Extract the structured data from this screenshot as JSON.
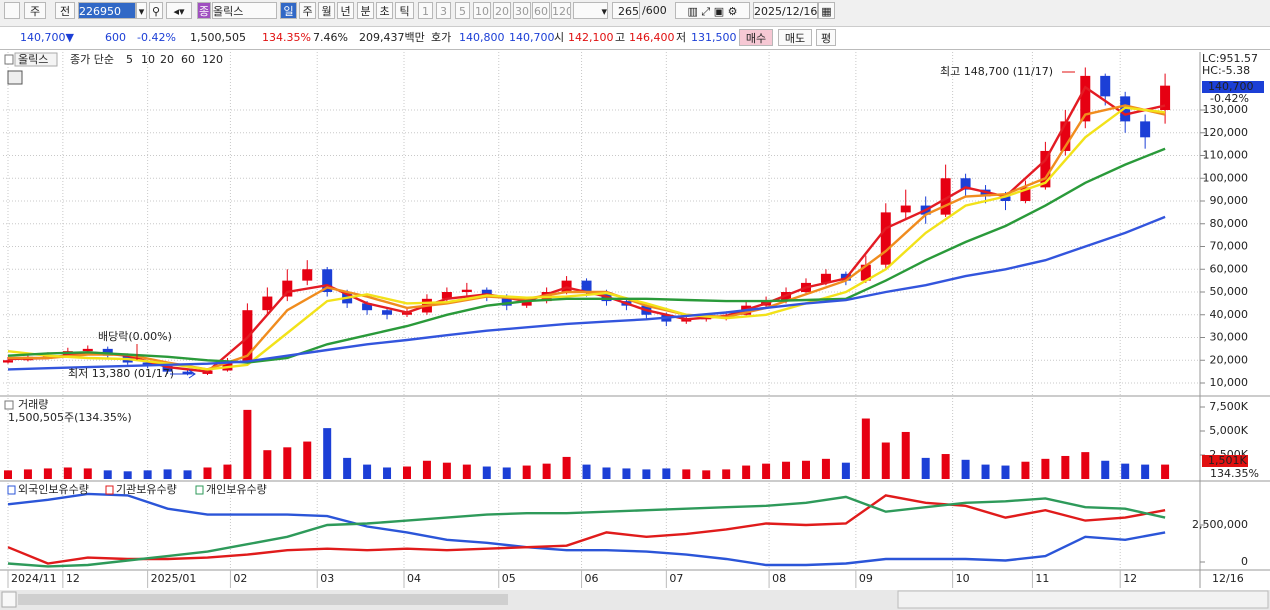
{
  "toolbar": {
    "row1": [
      "주",
      "전",
      "226950",
      "종",
      "올릭스",
      "일",
      "주",
      "월",
      "년",
      "분",
      "초",
      "틱",
      "1",
      "3",
      "5",
      "10",
      "20",
      "30",
      "60",
      "120",
      "265",
      "/600",
      "2025/12/16"
    ],
    "row2": [
      "140,700▼",
      "600",
      "-0.42%",
      "1,500,505",
      "134.35%",
      "7.46%",
      "209,437백만",
      "호가",
      "140,800",
      "140,700",
      "시",
      "142,100",
      "고",
      "146,400",
      "저",
      "131,500",
      "매수",
      "매도",
      "평"
    ]
  },
  "chart_data": [
    {
      "type": "candlestick",
      "title": "올릭스",
      "legend_label": "종가 단순",
      "up_color": "#e60012",
      "down_color": "#1c3fd6",
      "open": [
        19000,
        20000,
        21500,
        22000,
        24000,
        25000,
        22000,
        19000,
        17500,
        15000,
        14000,
        15500,
        19500,
        42000,
        48000,
        55000,
        60000,
        50000,
        45000,
        42000,
        40000,
        41000,
        47000,
        50000,
        51000,
        48000,
        44000,
        46000,
        50000,
        55000,
        50000,
        46000,
        44000,
        40000,
        37000,
        38000,
        38500,
        40000,
        44000,
        46000,
        50000,
        54000,
        58000,
        55000,
        62000,
        85000,
        88000,
        84000,
        100000,
        95000,
        92000,
        90000,
        96000,
        112000,
        125000,
        145000,
        136000,
        125000,
        130000
      ],
      "high": [
        21500,
        23000,
        23500,
        25500,
        26500,
        26000,
        23000,
        20000,
        18000,
        15500,
        16500,
        21000,
        45000,
        52000,
        60000,
        64000,
        61000,
        51000,
        46000,
        43000,
        43000,
        49000,
        52000,
        54000,
        52000,
        49000,
        48000,
        52000,
        57000,
        56000,
        51000,
        47000,
        45000,
        41000,
        39500,
        40000,
        41500,
        46000,
        48000,
        52000,
        56000,
        60000,
        59000,
        66000,
        89000,
        95000,
        92000,
        106000,
        102000,
        97000,
        94000,
        99000,
        116000,
        130000,
        148700,
        146000,
        138000,
        128000,
        146000
      ],
      "low": [
        18500,
        19500,
        20500,
        21000,
        23000,
        21000,
        18000,
        16500,
        14000,
        13380,
        13500,
        15000,
        19000,
        40000,
        46000,
        53000,
        48000,
        43000,
        40000,
        38000,
        39000,
        40000,
        45000,
        48000,
        46000,
        42000,
        43000,
        45000,
        49000,
        48000,
        44000,
        42000,
        38000,
        35000,
        36000,
        37000,
        37500,
        39000,
        43000,
        45000,
        49000,
        53000,
        53000,
        54000,
        60000,
        82000,
        80000,
        83000,
        92000,
        89000,
        86000,
        89000,
        95000,
        110000,
        122000,
        132000,
        120000,
        113000,
        124000
      ],
      "close": [
        20000,
        21500,
        22000,
        24000,
        25000,
        22000,
        19000,
        17500,
        15000,
        14000,
        15500,
        19000,
        42000,
        48000,
        55000,
        60000,
        50000,
        45000,
        42000,
        40000,
        41000,
        47000,
        50000,
        51000,
        48000,
        44000,
        46000,
        50000,
        55000,
        50000,
        46000,
        44000,
        40000,
        37000,
        38000,
        38500,
        40000,
        44000,
        46000,
        50000,
        54000,
        58000,
        55000,
        62000,
        85000,
        88000,
        84000,
        100000,
        95000,
        92000,
        90000,
        96000,
        112000,
        125000,
        145000,
        136000,
        125000,
        118000,
        140700
      ],
      "series": [
        {
          "name": "5",
          "color": "#e31b23",
          "x": [
            0,
            2,
            4,
            6,
            8,
            10,
            12,
            14,
            16,
            18,
            20,
            22,
            24,
            26,
            28,
            30,
            32,
            34,
            36,
            38,
            40,
            42,
            44,
            46,
            48,
            50,
            52,
            54,
            56,
            58
          ],
          "values": [
            20500,
            21000,
            23500,
            22000,
            17000,
            15000,
            30000,
            50000,
            53000,
            45000,
            41000,
            47000,
            49000,
            46000,
            52000,
            48000,
            42000,
            38000,
            39500,
            45000,
            52000,
            56000,
            78000,
            86000,
            96000,
            92000,
            108000,
            140000,
            128000,
            132000
          ]
        },
        {
          "name": "10",
          "color": "#f08c1e",
          "x": [
            0,
            2,
            4,
            6,
            8,
            10,
            12,
            14,
            16,
            18,
            20,
            22,
            24,
            26,
            28,
            30,
            32,
            34,
            36,
            38,
            40,
            42,
            44,
            46,
            48,
            50,
            52,
            54,
            56,
            58
          ],
          "values": [
            21000,
            21000,
            22500,
            22500,
            19000,
            16000,
            22000,
            42000,
            52000,
            48000,
            43000,
            45000,
            48000,
            47000,
            50000,
            50000,
            44000,
            40000,
            39000,
            43000,
            49000,
            55000,
            68000,
            84000,
            92000,
            93000,
            100000,
            128000,
            132000,
            128000
          ]
        },
        {
          "name": "20",
          "color": "#f2e21a",
          "x": [
            0,
            2,
            4,
            6,
            8,
            10,
            12,
            14,
            16,
            18,
            20,
            22,
            24,
            26,
            28,
            30,
            32,
            34,
            36,
            38,
            40,
            42,
            44,
            46,
            48,
            50,
            52,
            54,
            56,
            58
          ],
          "values": [
            24000,
            22000,
            21000,
            20500,
            18500,
            16000,
            18000,
            32000,
            46000,
            49000,
            45000,
            45500,
            48500,
            47500,
            48000,
            49500,
            45000,
            40000,
            38500,
            40000,
            45000,
            50000,
            60000,
            76000,
            88000,
            92000,
            98000,
            118000,
            131000,
            129000
          ]
        },
        {
          "name": "60",
          "color": "#2a9a3a",
          "x": [
            0,
            2,
            4,
            6,
            8,
            10,
            12,
            14,
            16,
            18,
            20,
            22,
            24,
            26,
            28,
            30,
            32,
            34,
            36,
            38,
            40,
            42,
            44,
            46,
            48,
            50,
            52,
            54,
            56,
            58
          ],
          "values": [
            22000,
            23000,
            23500,
            22500,
            21500,
            20000,
            19000,
            21000,
            27000,
            31000,
            35000,
            40000,
            44000,
            46000,
            47000,
            47000,
            47000,
            46500,
            46000,
            46000,
            46500,
            47000,
            55000,
            64000,
            72000,
            79000,
            88000,
            98000,
            106000,
            113000
          ]
        },
        {
          "name": "120",
          "color": "#3355dd",
          "x": [
            0,
            2,
            4,
            6,
            8,
            10,
            12,
            14,
            16,
            18,
            20,
            22,
            24,
            26,
            28,
            30,
            32,
            34,
            36,
            38,
            40,
            42,
            44,
            46,
            48,
            50,
            52,
            54,
            56,
            58
          ],
          "values": [
            16000,
            16500,
            17000,
            17500,
            18000,
            18500,
            19500,
            22000,
            24500,
            27000,
            28900,
            31000,
            33000,
            34500,
            36000,
            37000,
            38000,
            39500,
            41000,
            43000,
            45000,
            46500,
            50000,
            53000,
            57000,
            60000,
            64000,
            70000,
            76000,
            83000
          ]
        }
      ],
      "annotations": [
        "최고 148,700 (11/17)",
        "최저 13,380 (01/17)",
        "배당락(0.00%)"
      ],
      "tags": [
        "LC:951.57",
        "HC:-5.38",
        "140,700",
        "-0.42%"
      ],
      "xlim": [
        -0.25,
        59.75
      ],
      "ylim": [
        4725,
        155500
      ],
      "grid": true,
      "yticks": [
        {
          "value": 10000,
          "label": "10,000"
        },
        {
          "value": 20000,
          "label": "20,000"
        },
        {
          "value": 30000,
          "label": "30,000"
        },
        {
          "value": 40000,
          "label": "40,000"
        },
        {
          "value": 50000,
          "label": "50,000"
        },
        {
          "value": 60000,
          "label": "60,000"
        },
        {
          "value": 70000,
          "label": "70,000"
        },
        {
          "value": 80000,
          "label": "80,000"
        },
        {
          "value": 90000,
          "label": "90,000"
        },
        {
          "value": 100000,
          "label": "100,000"
        },
        {
          "value": 110000,
          "label": "110,000"
        },
        {
          "value": 120000,
          "label": "120,000"
        },
        {
          "value": 130000,
          "label": "130,000"
        }
      ]
    },
    {
      "type": "bar",
      "title": "거래량",
      "subtitle": "1,500,505주(134.35%)",
      "values": [
        900000,
        1000000,
        1100000,
        1200000,
        1100000,
        900000,
        800000,
        900000,
        1000000,
        900000,
        1200000,
        1500000,
        7200000,
        3000000,
        3300000,
        3900000,
        5300000,
        2200000,
        1500000,
        1200000,
        1300000,
        1900000,
        1700000,
        1500000,
        1300000,
        1200000,
        1400000,
        1600000,
        2300000,
        1500000,
        1200000,
        1100000,
        1000000,
        1100000,
        1000000,
        900000,
        1000000,
        1400000,
        1600000,
        1800000,
        1900000,
        2100000,
        1700000,
        6300000,
        3800000,
        4900000,
        2200000,
        2600000,
        2000000,
        1500000,
        1400000,
        1800000,
        2100000,
        2400000,
        2800000,
        1900000,
        1600000,
        1500000,
        1500505
      ],
      "tags": [
        "1,501K",
        "134.35%"
      ],
      "xlim": [
        -0.25,
        59.75
      ],
      "ylim": [
        0,
        8437500
      ],
      "yticks": [
        {
          "value": 2500000,
          "label": "2,500K"
        },
        {
          "value": 5000000,
          "label": "5,000K"
        },
        {
          "value": 7500000,
          "label": "7,500K"
        }
      ]
    },
    {
      "type": "line",
      "series": [
        {
          "name": "외국인보유수량",
          "color": "#2b55d8",
          "x": [
            0,
            2,
            4,
            6,
            8,
            10,
            12,
            14,
            16,
            18,
            20,
            22,
            24,
            26,
            28,
            30,
            32,
            34,
            36,
            38,
            40,
            42,
            44,
            46,
            48,
            50,
            52,
            54,
            56,
            58
          ],
          "values": [
            3900000,
            4200000,
            4600000,
            4500000,
            3600000,
            3200000,
            3200000,
            3200000,
            3100000,
            2400000,
            2000000,
            1500000,
            1300000,
            1000000,
            800000,
            800000,
            700000,
            500000,
            200000,
            -200000,
            -200000,
            -100000,
            200000,
            200000,
            200000,
            100000,
            400000,
            1700000,
            1500000,
            2000000
          ]
        },
        {
          "name": "기관보유수량",
          "color": "#e01b1b",
          "x": [
            0,
            2,
            4,
            6,
            8,
            10,
            12,
            14,
            16,
            18,
            20,
            22,
            24,
            26,
            28,
            30,
            32,
            34,
            36,
            38,
            40,
            42,
            44,
            46,
            48,
            50,
            52,
            54,
            56,
            58
          ],
          "values": [
            1000000,
            -100000,
            300000,
            200000,
            200000,
            300000,
            500000,
            800000,
            900000,
            800000,
            900000,
            800000,
            900000,
            1000000,
            1100000,
            2000000,
            1700000,
            1900000,
            2200000,
            2600000,
            2500000,
            2600000,
            4500000,
            4000000,
            3800000,
            3000000,
            3500000,
            2800000,
            3000000,
            3500000
          ]
        },
        {
          "name": "개인보유수량",
          "color": "#2e9a5a",
          "x": [
            0,
            2,
            4,
            6,
            8,
            10,
            12,
            14,
            16,
            18,
            20,
            22,
            24,
            26,
            28,
            30,
            32,
            34,
            36,
            38,
            40,
            42,
            44,
            46,
            48,
            50,
            52,
            54,
            56,
            58
          ],
          "values": [
            -100000,
            -300000,
            -200000,
            100000,
            400000,
            700000,
            1200000,
            1700000,
            2500000,
            2600000,
            2800000,
            3000000,
            3200000,
            3300000,
            3300000,
            3400000,
            3500000,
            3600000,
            3700000,
            3800000,
            4000000,
            4400000,
            3400000,
            3700000,
            4000000,
            4100000,
            4300000,
            3700000,
            3600000,
            3000000
          ]
        }
      ],
      "xlim": [
        -0.25,
        59.75
      ],
      "ylim": [
        -473000,
        5338000
      ],
      "yticks": [
        0,
        {
          "value": 2500000,
          "label": "2,500,000"
        }
      ],
      "xticks": [
        {
          "value": 0,
          "label": "2024/11"
        },
        {
          "value": 2.75,
          "label": "12"
        },
        {
          "value": 7,
          "label": "2025/01"
        },
        {
          "value": 11.15,
          "label": "02"
        },
        {
          "value": 15.5,
          "label": "03"
        },
        {
          "value": 19.85,
          "label": "04"
        },
        {
          "value": 24.6,
          "label": "05"
        },
        {
          "value": 28.75,
          "label": "06"
        },
        {
          "value": 33,
          "label": "07"
        },
        {
          "value": 38.15,
          "label": "08"
        },
        {
          "value": 42.5,
          "label": "09"
        },
        {
          "value": 47.35,
          "label": "10"
        },
        {
          "value": 51.35,
          "label": "11"
        },
        {
          "value": 55.75,
          "label": "12"
        }
      ],
      "date_label": "12/16"
    }
  ]
}
